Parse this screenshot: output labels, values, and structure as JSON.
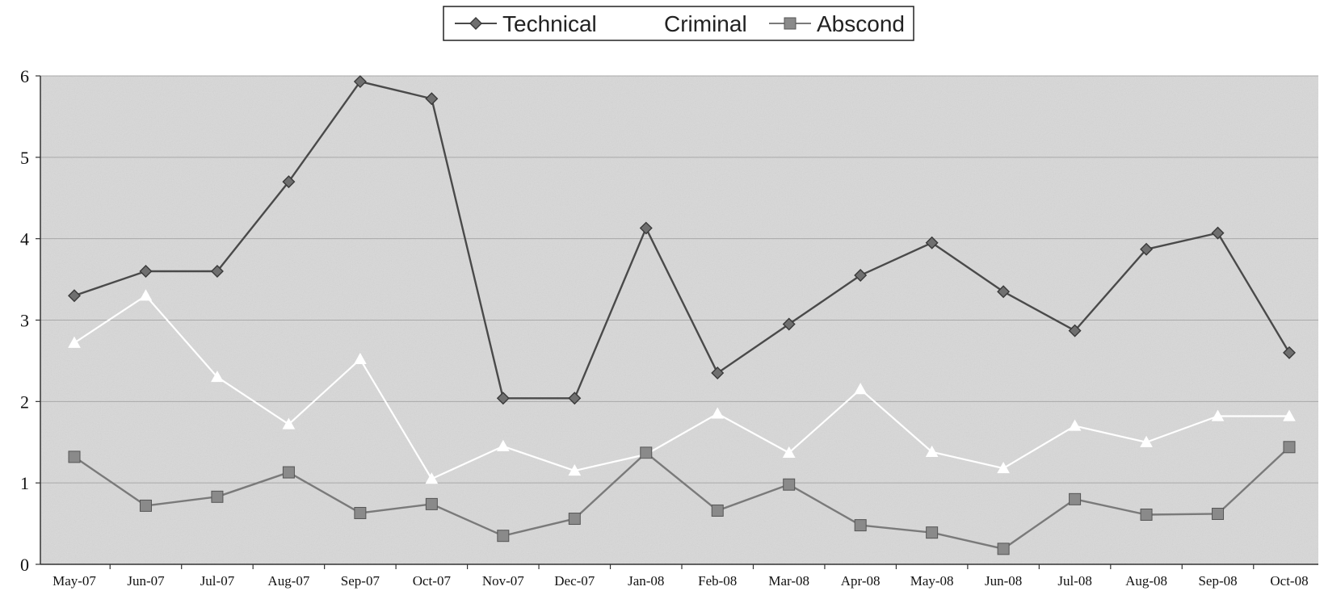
{
  "chart_data": {
    "type": "line",
    "categories": [
      "May-07",
      "Jun-07",
      "Jul-07",
      "Aug-07",
      "Sep-07",
      "Oct-07",
      "Nov-07",
      "Dec-07",
      "Jan-08",
      "Feb-08",
      "Mar-08",
      "Apr-08",
      "May-08",
      "Jun-08",
      "Jul-08",
      "Aug-08",
      "Sep-08",
      "Oct-08"
    ],
    "series": [
      {
        "name": "Technical",
        "marker": "diamond",
        "color": "#6f6f6f",
        "values": [
          3.3,
          3.6,
          3.6,
          4.7,
          5.93,
          5.72,
          2.04,
          2.04,
          4.13,
          2.35,
          2.95,
          3.55,
          3.95,
          3.35,
          2.87,
          3.87,
          4.07,
          2.6
        ]
      },
      {
        "name": "Criminal",
        "marker": "triangle",
        "color": "#ffffff",
        "values": [
          2.72,
          3.3,
          2.3,
          1.72,
          2.52,
          1.05,
          1.45,
          1.15,
          1.35,
          1.85,
          1.37,
          2.15,
          1.38,
          1.18,
          1.7,
          1.5,
          1.82,
          1.82
        ]
      },
      {
        "name": "Abscond",
        "marker": "square",
        "color": "#8a8a8a",
        "values": [
          1.32,
          0.72,
          0.83,
          1.13,
          0.63,
          0.74,
          0.35,
          0.56,
          1.37,
          0.66,
          0.98,
          0.48,
          0.39,
          0.19,
          0.8,
          0.61,
          0.62,
          1.44
        ]
      }
    ],
    "yticks": [
      "0",
      "1",
      "2",
      "3",
      "4",
      "5",
      "6"
    ],
    "ylim": [
      0,
      6
    ],
    "grid": true,
    "legend": "top-center",
    "plot_background": "#d8d8d8"
  }
}
